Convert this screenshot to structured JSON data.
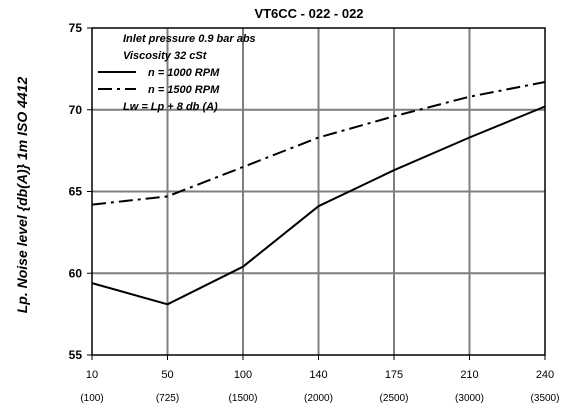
{
  "chart_data": {
    "type": "line",
    "title": "VT6CC - 022 - 022",
    "ylabel": "Lp. Noise level {db(A)} 1m ISO 4412",
    "xlabel": "",
    "x": [
      10,
      50,
      100,
      140,
      175,
      210,
      240
    ],
    "x_tick_labels": [
      "10",
      "50",
      "100",
      "140",
      "175",
      "210",
      "240"
    ],
    "x_tick_labels_secondary": [
      "(100)",
      "(725)",
      "(1500)",
      "(2000)",
      "(2500)",
      "(3000)",
      "(3500)"
    ],
    "y_ticks": [
      55,
      60,
      65,
      70,
      75
    ],
    "ylim": [
      55,
      75
    ],
    "grid": true,
    "series": [
      {
        "name": "n = 1000 RPM",
        "style": "solid",
        "values": [
          59.4,
          58.1,
          60.4,
          64.1,
          66.3,
          68.3,
          70.2
        ]
      },
      {
        "name": "n = 1500 RPM",
        "style": "dash-dot",
        "values": [
          64.2,
          64.7,
          66.5,
          68.3,
          69.6,
          70.8,
          71.7
        ]
      }
    ],
    "annotations": {
      "inlet_pressure": "Inlet pressure    0.9 bar abs",
      "viscosity": "Viscosity    32 cSt",
      "lw": "Lw = Lp + 8 db (A)"
    },
    "colors": {
      "line": "#000000",
      "grid": "#7f7f7f",
      "frame": "#000000"
    }
  }
}
